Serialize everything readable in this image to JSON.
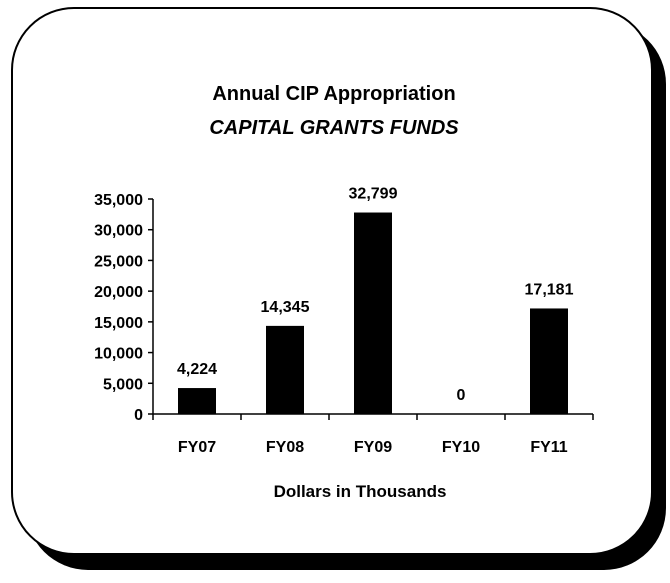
{
  "chart_data": {
    "type": "bar",
    "title": "Annual CIP Appropriation",
    "subtitle": "CAPITAL GRANTS FUNDS",
    "x_label": "Dollars in Thousands",
    "categories": [
      "FY07",
      "FY08",
      "FY09",
      "FY10",
      "FY11"
    ],
    "values": [
      4224,
      14345,
      32799,
      0,
      17181
    ],
    "value_labels": [
      "4,224",
      "14,345",
      "32,799",
      "0",
      "17,181"
    ],
    "color": "#000000",
    "ylim": [
      0,
      35000
    ],
    "yticks": [
      0,
      {
        "value": 5000,
        "label": "5,000"
      },
      {
        "value": 10000,
        "label": "10,000"
      },
      {
        "value": 15000,
        "label": "15,000"
      },
      {
        "value": 20000,
        "label": "20,000"
      },
      {
        "value": 25000,
        "label": "25,000"
      },
      {
        "value": 30000,
        "label": "30,000"
      },
      {
        "value": 35000,
        "label": "35,000"
      }
    ],
    "grid": false
  }
}
